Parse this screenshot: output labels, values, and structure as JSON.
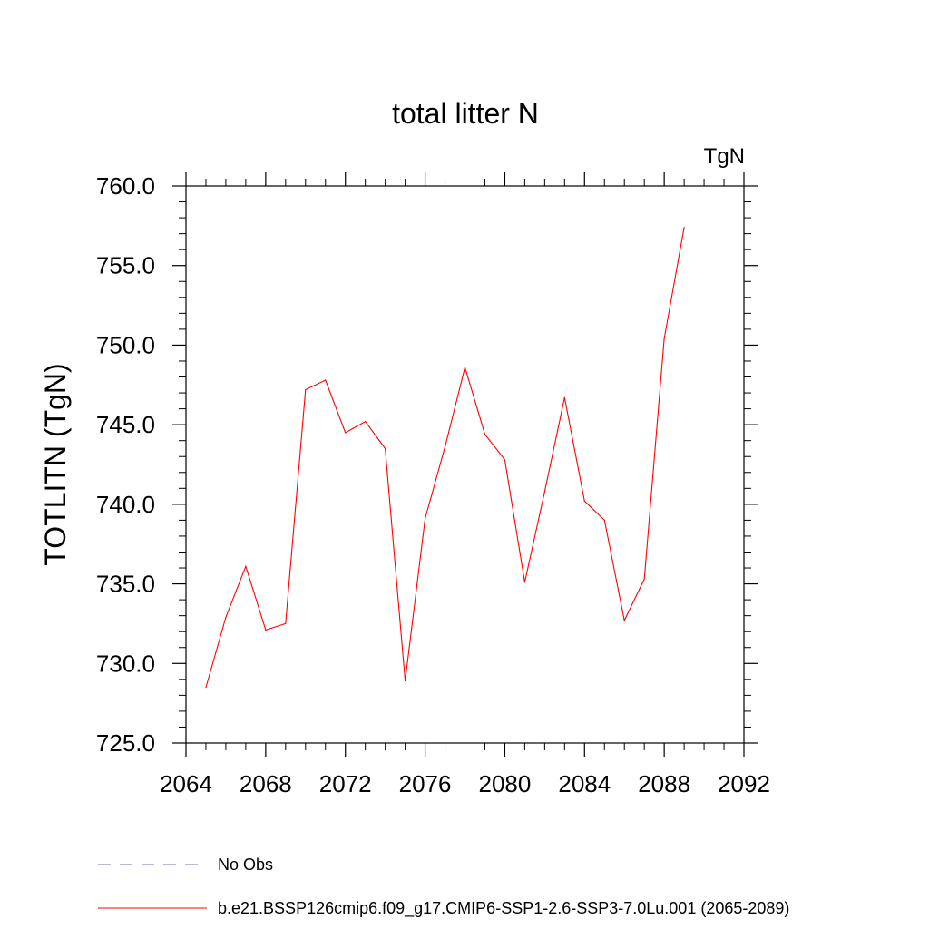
{
  "chart_data": {
    "type": "line",
    "title": "total litter N",
    "units": "TgN",
    "ylabel": "TOTLITN  (TgN)",
    "xlabel": "",
    "xlim": [
      2064,
      2092
    ],
    "ylim": [
      725,
      760
    ],
    "x_ticks": [
      2064,
      2068,
      2072,
      2076,
      2080,
      2084,
      2088,
      2092
    ],
    "y_ticks": [
      725.0,
      730.0,
      735.0,
      740.0,
      745.0,
      750.0,
      755.0,
      760.0
    ],
    "x_tick_labels": [
      "2064",
      "2068",
      "2072",
      "2076",
      "2080",
      "2084",
      "2088",
      "2092"
    ],
    "y_tick_labels": [
      "725.0",
      "730.0",
      "735.0",
      "740.0",
      "745.0",
      "750.0",
      "755.0",
      "760.0"
    ],
    "grid": false,
    "legend_position": "bottom",
    "series": [
      {
        "name": "b.e21.BSSP126cmip6.f09_g17.CMIP6-SSP1-2.6-SSP3-7.0Lu.001 (2065-2089)",
        "color": "#ff0000",
        "style": "solid",
        "x": [
          2065,
          2066,
          2067,
          2068,
          2069,
          2070,
          2071,
          2072,
          2073,
          2074,
          2075,
          2076,
          2077,
          2078,
          2079,
          2080,
          2081,
          2082,
          2083,
          2084,
          2085,
          2086,
          2087,
          2088,
          2089
        ],
        "y": [
          728.5,
          732.9,
          736.1,
          732.1,
          732.5,
          747.2,
          747.8,
          744.5,
          745.2,
          743.5,
          728.9,
          739.1,
          743.6,
          748.6,
          744.4,
          742.8,
          735.1,
          740.8,
          746.7,
          740.2,
          739.0,
          732.7,
          735.3,
          750.4,
          757.4
        ]
      }
    ],
    "legend": [
      {
        "label": "No Obs",
        "color": "#7a6fb5",
        "style": "dashed"
      },
      {
        "label": "b.e21.BSSP126cmip6.f09_g17.CMIP6-SSP1-2.6-SSP3-7.0Lu.001 (2065-2089)",
        "color": "#ff0000",
        "style": "solid"
      }
    ]
  }
}
